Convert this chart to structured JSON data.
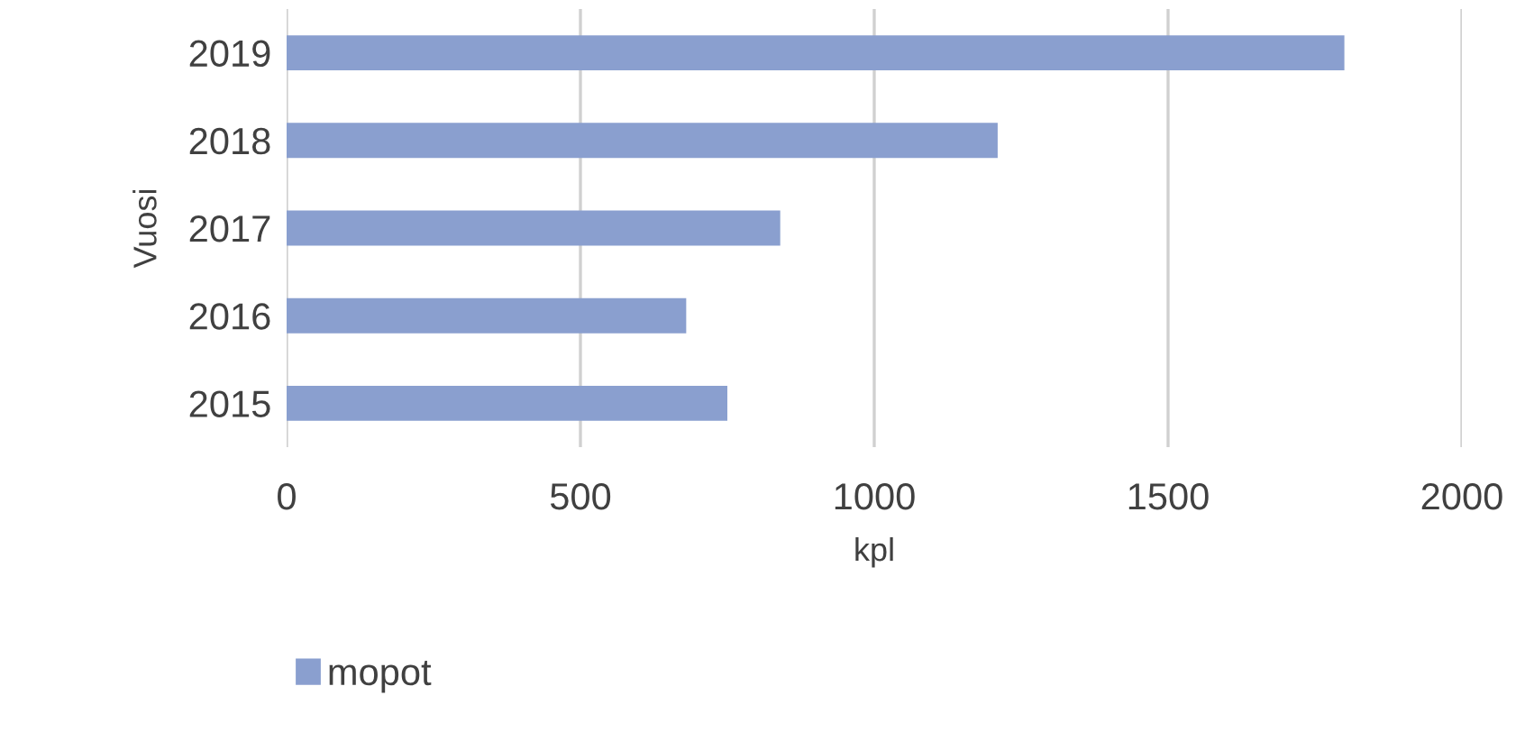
{
  "chart_data": {
    "type": "bar",
    "orientation": "horizontal",
    "xlabel": "kpl",
    "ylabel": "Vuosi",
    "categories": [
      "2019",
      "2018",
      "2017",
      "2016",
      "2015"
    ],
    "series": [
      {
        "name": "mopot",
        "color": "#8a9fcf",
        "values": [
          1800,
          1210,
          840,
          680,
          750
        ]
      }
    ],
    "xlim": [
      0,
      2000
    ],
    "xticks": [
      0,
      500,
      1000,
      1500,
      2000
    ],
    "grid": "x",
    "legend": "bottom"
  }
}
